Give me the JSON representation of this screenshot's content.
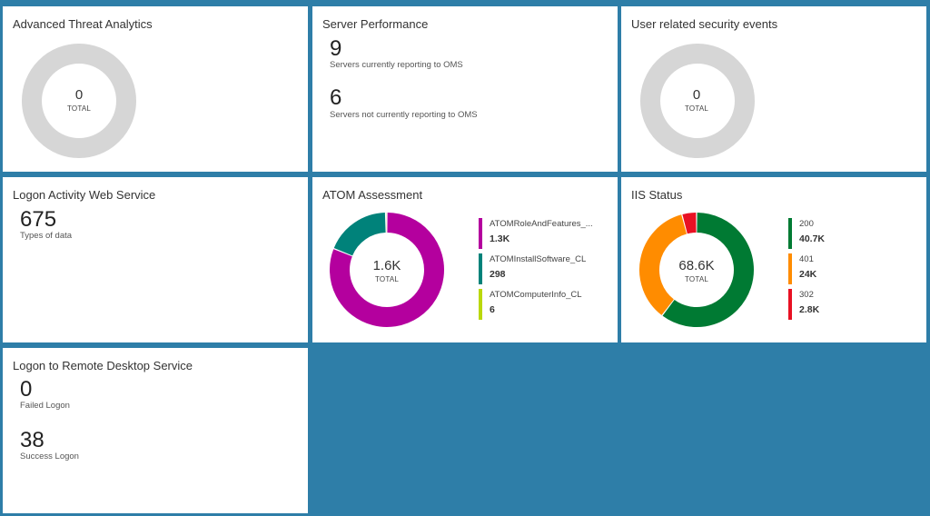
{
  "colors": {
    "background": "#2e7ea8",
    "tile": "#ffffff",
    "empty_ring": "#d6d6d6",
    "magenta": "#b4009e",
    "teal": "#00827a",
    "lime": "#bad80a",
    "green": "#007a33",
    "orange": "#ff8c00",
    "red": "#e81123"
  },
  "tiles": {
    "ata": {
      "title": "Advanced Threat Analytics",
      "total_value": "0",
      "total_label": "TOTAL"
    },
    "server_perf": {
      "title": "Server Performance",
      "reporting_count": "9",
      "reporting_label": "Servers currently reporting to OMS",
      "not_reporting_count": "6",
      "not_reporting_label": "Servers not currently reporting to OMS"
    },
    "user_security": {
      "title": "User related security events",
      "total_value": "0",
      "total_label": "TOTAL"
    },
    "logon_web": {
      "title": "Logon Activity Web Service",
      "count": "675",
      "count_label": "Types of data"
    },
    "atom": {
      "title": "ATOM Assessment",
      "total_value": "1.6K",
      "total_label": "TOTAL",
      "legend": [
        {
          "name": "ATOMRoleAndFeatures_...",
          "value": "1.3K",
          "color": "#b4009e"
        },
        {
          "name": "ATOMInstallSoftware_CL",
          "value": "298",
          "color": "#00827a"
        },
        {
          "name": "ATOMComputerInfo_CL",
          "value": "6",
          "color": "#bad80a"
        }
      ]
    },
    "iis": {
      "title": "IIS Status",
      "total_value": "68.6K",
      "total_label": "TOTAL",
      "legend": [
        {
          "name": "200",
          "value": "40.7K",
          "color": "#007a33"
        },
        {
          "name": "401",
          "value": "24K",
          "color": "#ff8c00"
        },
        {
          "name": "302",
          "value": "2.8K",
          "color": "#e81123"
        }
      ]
    },
    "rdp": {
      "title": "Logon to Remote Desktop Service",
      "failed_count": "0",
      "failed_label": "Failed Logon",
      "success_count": "38",
      "success_label": "Success Logon"
    }
  },
  "chart_data": [
    {
      "type": "pie",
      "title": "Advanced Threat Analytics",
      "categories": [],
      "values": [],
      "total": 0
    },
    {
      "type": "pie",
      "title": "User related security events",
      "categories": [],
      "values": [],
      "total": 0
    },
    {
      "type": "pie",
      "title": "ATOM Assessment",
      "categories": [
        "ATOMRoleAndFeatures_...",
        "ATOMInstallSoftware_CL",
        "ATOMComputerInfo_CL"
      ],
      "values": [
        1300,
        298,
        6
      ],
      "colors": [
        "#b4009e",
        "#00827a",
        "#bad80a"
      ],
      "total": "1.6K"
    },
    {
      "type": "pie",
      "title": "IIS Status",
      "categories": [
        "200",
        "401",
        "302"
      ],
      "values": [
        40700,
        24000,
        2800
      ],
      "colors": [
        "#007a33",
        "#ff8c00",
        "#e81123"
      ],
      "total": "68.6K"
    }
  ]
}
